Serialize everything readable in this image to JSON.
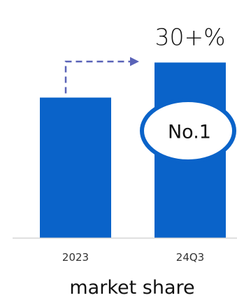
{
  "chart_data": {
    "type": "bar",
    "categories": [
      "2023",
      "24Q3"
    ],
    "values": [
      24,
      30
    ],
    "ylim": [
      0,
      34
    ],
    "value_labels": [
      "",
      "30+%"
    ],
    "xlabel": "market share",
    "badge": "No.1",
    "grid": false,
    "legend": "none",
    "bar_color": "#0a63c9",
    "arrow_color": "#5a63b8"
  }
}
